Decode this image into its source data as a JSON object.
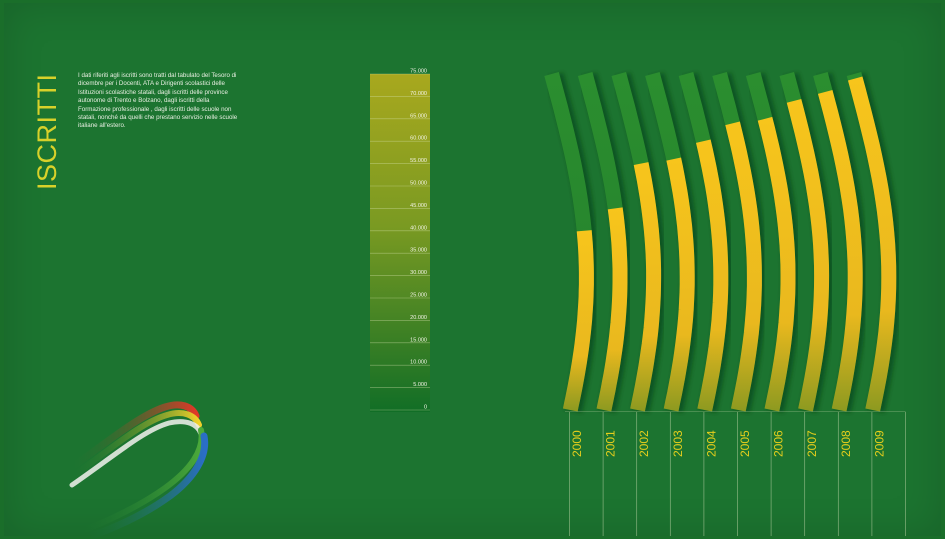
{
  "title": "ISCRITTI",
  "description": "I dati riferiti agli iscritti sono tratti dal tabulato del Tesoro di dicembre per i Docenti, ATA e Dirigenti scolastici delle Istituzioni scolastiche statali, dagli iscritti delle province autonome di Trento e Bolzano, dagli iscritti della Formazione professionale , dagli iscritti delle scuole non statali, nonché da quelli che prestano servizio nelle scuole italiane all'estero.",
  "colors": {
    "background": "#1c7430",
    "bar_fill": "#f2be1e",
    "bar_track": "#2a8a2e",
    "title": "#d8d12a"
  },
  "chart_data": {
    "type": "bar",
    "categories": [
      "2000",
      "2001",
      "2002",
      "2003",
      "2004",
      "2005",
      "2006",
      "2007",
      "2008",
      "2009"
    ],
    "values": [
      40000,
      45000,
      55000,
      56000,
      60000,
      64000,
      65000,
      69000,
      71000,
      74000
    ],
    "ylim": [
      0,
      75000
    ],
    "yticks": [
      "0",
      "5.000",
      "10.000",
      "15.000",
      "20.000",
      "25.000",
      "30.000",
      "35.000",
      "40.000",
      "45.000",
      "50.000",
      "55.000",
      "60.000",
      "65.000",
      "70.000",
      "75.000"
    ],
    "grid": true,
    "title": "",
    "xlabel": "",
    "ylabel": ""
  }
}
